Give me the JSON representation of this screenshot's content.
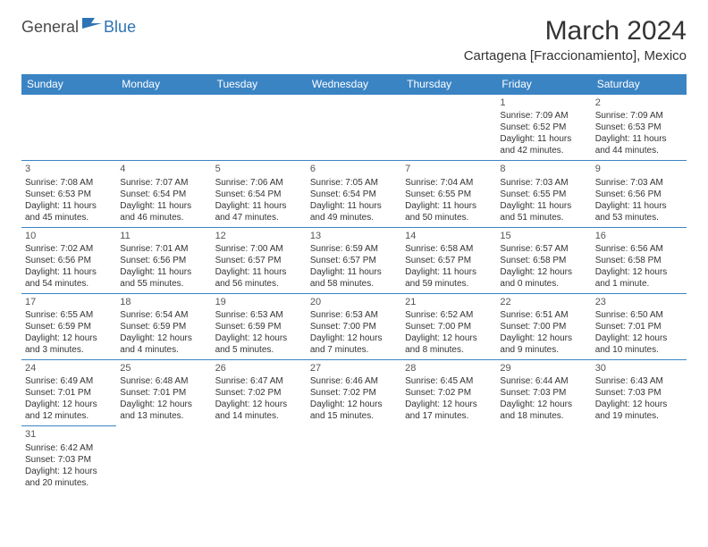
{
  "logo": {
    "word1": "General",
    "word2": "Blue"
  },
  "title": "March 2024",
  "location": "Cartagena [Fraccionamiento], Mexico",
  "header_bg": "#3b84c4",
  "text_color": "#333333",
  "days_of_week": [
    "Sunday",
    "Monday",
    "Tuesday",
    "Wednesday",
    "Thursday",
    "Friday",
    "Saturday"
  ],
  "weeks": [
    [
      null,
      null,
      null,
      null,
      null,
      {
        "n": "1",
        "sr": "Sunrise: 7:09 AM",
        "ss": "Sunset: 6:52 PM",
        "dl1": "Daylight: 11 hours",
        "dl2": "and 42 minutes."
      },
      {
        "n": "2",
        "sr": "Sunrise: 7:09 AM",
        "ss": "Sunset: 6:53 PM",
        "dl1": "Daylight: 11 hours",
        "dl2": "and 44 minutes."
      }
    ],
    [
      {
        "n": "3",
        "sr": "Sunrise: 7:08 AM",
        "ss": "Sunset: 6:53 PM",
        "dl1": "Daylight: 11 hours",
        "dl2": "and 45 minutes."
      },
      {
        "n": "4",
        "sr": "Sunrise: 7:07 AM",
        "ss": "Sunset: 6:54 PM",
        "dl1": "Daylight: 11 hours",
        "dl2": "and 46 minutes."
      },
      {
        "n": "5",
        "sr": "Sunrise: 7:06 AM",
        "ss": "Sunset: 6:54 PM",
        "dl1": "Daylight: 11 hours",
        "dl2": "and 47 minutes."
      },
      {
        "n": "6",
        "sr": "Sunrise: 7:05 AM",
        "ss": "Sunset: 6:54 PM",
        "dl1": "Daylight: 11 hours",
        "dl2": "and 49 minutes."
      },
      {
        "n": "7",
        "sr": "Sunrise: 7:04 AM",
        "ss": "Sunset: 6:55 PM",
        "dl1": "Daylight: 11 hours",
        "dl2": "and 50 minutes."
      },
      {
        "n": "8",
        "sr": "Sunrise: 7:03 AM",
        "ss": "Sunset: 6:55 PM",
        "dl1": "Daylight: 11 hours",
        "dl2": "and 51 minutes."
      },
      {
        "n": "9",
        "sr": "Sunrise: 7:03 AM",
        "ss": "Sunset: 6:56 PM",
        "dl1": "Daylight: 11 hours",
        "dl2": "and 53 minutes."
      }
    ],
    [
      {
        "n": "10",
        "sr": "Sunrise: 7:02 AM",
        "ss": "Sunset: 6:56 PM",
        "dl1": "Daylight: 11 hours",
        "dl2": "and 54 minutes."
      },
      {
        "n": "11",
        "sr": "Sunrise: 7:01 AM",
        "ss": "Sunset: 6:56 PM",
        "dl1": "Daylight: 11 hours",
        "dl2": "and 55 minutes."
      },
      {
        "n": "12",
        "sr": "Sunrise: 7:00 AM",
        "ss": "Sunset: 6:57 PM",
        "dl1": "Daylight: 11 hours",
        "dl2": "and 56 minutes."
      },
      {
        "n": "13",
        "sr": "Sunrise: 6:59 AM",
        "ss": "Sunset: 6:57 PM",
        "dl1": "Daylight: 11 hours",
        "dl2": "and 58 minutes."
      },
      {
        "n": "14",
        "sr": "Sunrise: 6:58 AM",
        "ss": "Sunset: 6:57 PM",
        "dl1": "Daylight: 11 hours",
        "dl2": "and 59 minutes."
      },
      {
        "n": "15",
        "sr": "Sunrise: 6:57 AM",
        "ss": "Sunset: 6:58 PM",
        "dl1": "Daylight: 12 hours",
        "dl2": "and 0 minutes."
      },
      {
        "n": "16",
        "sr": "Sunrise: 6:56 AM",
        "ss": "Sunset: 6:58 PM",
        "dl1": "Daylight: 12 hours",
        "dl2": "and 1 minute."
      }
    ],
    [
      {
        "n": "17",
        "sr": "Sunrise: 6:55 AM",
        "ss": "Sunset: 6:59 PM",
        "dl1": "Daylight: 12 hours",
        "dl2": "and 3 minutes."
      },
      {
        "n": "18",
        "sr": "Sunrise: 6:54 AM",
        "ss": "Sunset: 6:59 PM",
        "dl1": "Daylight: 12 hours",
        "dl2": "and 4 minutes."
      },
      {
        "n": "19",
        "sr": "Sunrise: 6:53 AM",
        "ss": "Sunset: 6:59 PM",
        "dl1": "Daylight: 12 hours",
        "dl2": "and 5 minutes."
      },
      {
        "n": "20",
        "sr": "Sunrise: 6:53 AM",
        "ss": "Sunset: 7:00 PM",
        "dl1": "Daylight: 12 hours",
        "dl2": "and 7 minutes."
      },
      {
        "n": "21",
        "sr": "Sunrise: 6:52 AM",
        "ss": "Sunset: 7:00 PM",
        "dl1": "Daylight: 12 hours",
        "dl2": "and 8 minutes."
      },
      {
        "n": "22",
        "sr": "Sunrise: 6:51 AM",
        "ss": "Sunset: 7:00 PM",
        "dl1": "Daylight: 12 hours",
        "dl2": "and 9 minutes."
      },
      {
        "n": "23",
        "sr": "Sunrise: 6:50 AM",
        "ss": "Sunset: 7:01 PM",
        "dl1": "Daylight: 12 hours",
        "dl2": "and 10 minutes."
      }
    ],
    [
      {
        "n": "24",
        "sr": "Sunrise: 6:49 AM",
        "ss": "Sunset: 7:01 PM",
        "dl1": "Daylight: 12 hours",
        "dl2": "and 12 minutes."
      },
      {
        "n": "25",
        "sr": "Sunrise: 6:48 AM",
        "ss": "Sunset: 7:01 PM",
        "dl1": "Daylight: 12 hours",
        "dl2": "and 13 minutes."
      },
      {
        "n": "26",
        "sr": "Sunrise: 6:47 AM",
        "ss": "Sunset: 7:02 PM",
        "dl1": "Daylight: 12 hours",
        "dl2": "and 14 minutes."
      },
      {
        "n": "27",
        "sr": "Sunrise: 6:46 AM",
        "ss": "Sunset: 7:02 PM",
        "dl1": "Daylight: 12 hours",
        "dl2": "and 15 minutes."
      },
      {
        "n": "28",
        "sr": "Sunrise: 6:45 AM",
        "ss": "Sunset: 7:02 PM",
        "dl1": "Daylight: 12 hours",
        "dl2": "and 17 minutes."
      },
      {
        "n": "29",
        "sr": "Sunrise: 6:44 AM",
        "ss": "Sunset: 7:03 PM",
        "dl1": "Daylight: 12 hours",
        "dl2": "and 18 minutes."
      },
      {
        "n": "30",
        "sr": "Sunrise: 6:43 AM",
        "ss": "Sunset: 7:03 PM",
        "dl1": "Daylight: 12 hours",
        "dl2": "and 19 minutes."
      }
    ],
    [
      {
        "n": "31",
        "sr": "Sunrise: 6:42 AM",
        "ss": "Sunset: 7:03 PM",
        "dl1": "Daylight: 12 hours",
        "dl2": "and 20 minutes."
      },
      null,
      null,
      null,
      null,
      null,
      null
    ]
  ]
}
